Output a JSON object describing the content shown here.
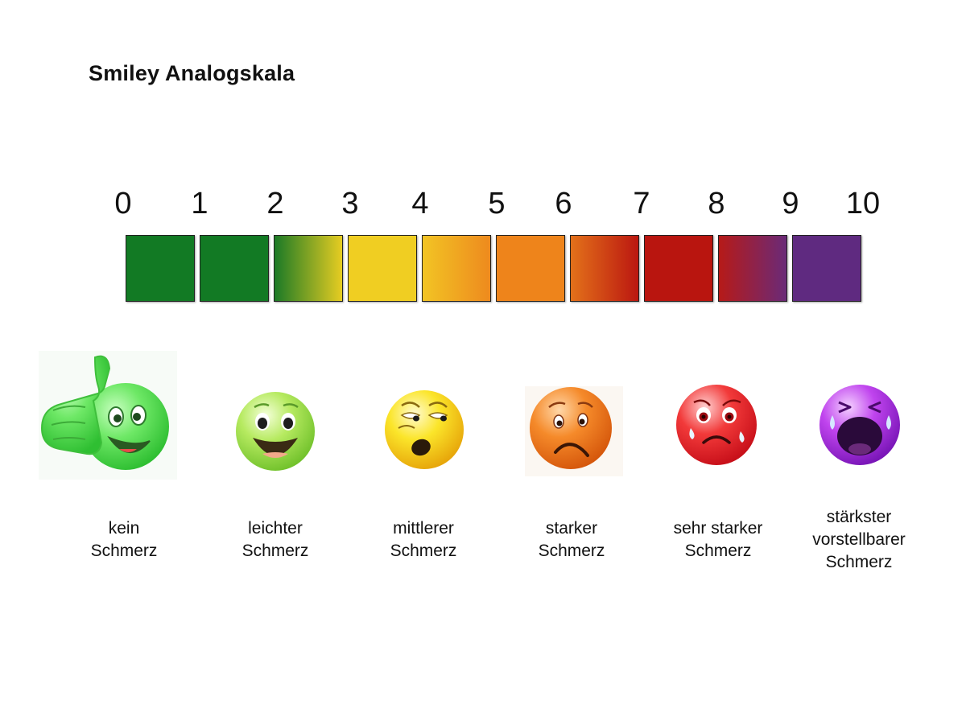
{
  "title": "Smiley Analogskala",
  "scale": {
    "numbers": [
      "0",
      "1",
      "2",
      "3",
      "4",
      "5",
      "6",
      "7",
      "8",
      "9",
      "10"
    ],
    "segments": [
      {
        "from": "#127a24",
        "to": "#127a24"
      },
      {
        "from": "#127a24",
        "to": "#127a24"
      },
      {
        "from": "#1b7a26",
        "to": "#e6cc22"
      },
      {
        "from": "#f0ce22",
        "to": "#f0ce22"
      },
      {
        "from": "#f2c424",
        "to": "#ee8a1e"
      },
      {
        "from": "#ee841b",
        "to": "#ee841b"
      },
      {
        "from": "#e3711a",
        "to": "#bb1710"
      },
      {
        "from": "#b9150f",
        "to": "#b9150f"
      },
      {
        "from": "#b61a18",
        "to": "#6a2a78"
      },
      {
        "from": "#5f2a80",
        "to": "#5f2a80"
      }
    ]
  },
  "faces": [
    {
      "icon": "thumbs-up-smiley-icon",
      "color": "#5ee05a",
      "label_lines": [
        "kein",
        "Schmerz"
      ]
    },
    {
      "icon": "laughing-smiley-icon",
      "color": "#9fdc48",
      "label_lines": [
        "leichter",
        "Schmerz"
      ]
    },
    {
      "icon": "surprised-smiley-icon",
      "color": "#f4d914",
      "label_lines": [
        "mittlerer",
        "Schmerz"
      ]
    },
    {
      "icon": "worried-smiley-icon",
      "color": "#f07818",
      "label_lines": [
        "starker",
        "Schmerz"
      ]
    },
    {
      "icon": "crying-smiley-icon",
      "color": "#ee1c24",
      "label_lines": [
        "sehr starker",
        "Schmerz"
      ]
    },
    {
      "icon": "screaming-smiley-icon",
      "color": "#b531e0",
      "label_lines": [
        "stärkster",
        "vorstellbarer",
        "Schmerz"
      ]
    }
  ]
}
